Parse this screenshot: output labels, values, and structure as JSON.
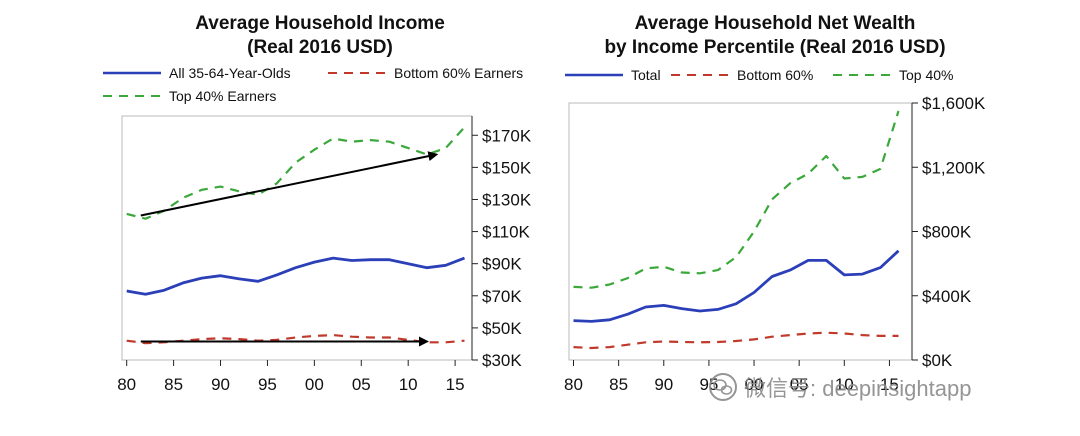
{
  "colors": {
    "all": "#2b3fb8",
    "bottom": "#c0392b",
    "top": "#3aa83a",
    "axis": "#222222",
    "frame": "#bbbbbb",
    "arrow": "#000000"
  },
  "watermark": {
    "text": "微信号: deepinsightapp"
  },
  "chart_data": [
    {
      "type": "line",
      "title": "Average Household Income",
      "subtitle": "(Real 2016 USD)",
      "xlabel": "",
      "ylabel": "",
      "x_ticks": [
        {
          "value": 1980,
          "label": "80"
        },
        {
          "value": 1985,
          "label": "85"
        },
        {
          "value": 1990,
          "label": "90"
        },
        {
          "value": 1995,
          "label": "95"
        },
        {
          "value": 2000,
          "label": "00"
        },
        {
          "value": 2005,
          "label": "05"
        },
        {
          "value": 2010,
          "label": "10"
        },
        {
          "value": 2015,
          "label": "15"
        }
      ],
      "y_ticks": [
        {
          "value": 30,
          "label": "$30K"
        },
        {
          "value": 50,
          "label": "$50K"
        },
        {
          "value": 70,
          "label": "$70K"
        },
        {
          "value": 90,
          "label": "$90K"
        },
        {
          "value": 110,
          "label": "$110K"
        },
        {
          "value": 130,
          "label": "$130K"
        },
        {
          "value": 150,
          "label": "$150K"
        },
        {
          "value": 170,
          "label": "$170K"
        }
      ],
      "xlim": [
        1979.5,
        2016.8
      ],
      "ylim": [
        30,
        182
      ],
      "legend": [
        {
          "name": "All 35-64-Year-Olds",
          "style": "solid",
          "color": "#2b3fb8"
        },
        {
          "name": "Bottom 60% Earners",
          "style": "dashed",
          "color": "#c0392b"
        },
        {
          "name": "Top 40% Earners",
          "style": "dashed",
          "color": "#3aa83a"
        }
      ],
      "series": [
        {
          "name": "All 35-64-Year-Olds",
          "style": "solid",
          "color": "#2b3fb8",
          "x": [
            1980,
            1982,
            1984,
            1986,
            1988,
            1990,
            1992,
            1994,
            1996,
            1998,
            2000,
            2002,
            2004,
            2006,
            2008,
            2010,
            2012,
            2014,
            2016
          ],
          "y": [
            73,
            71,
            73.5,
            78,
            81,
            82.5,
            80.5,
            79,
            83,
            87.5,
            91,
            93.5,
            92,
            92.5,
            92.5,
            90,
            87.5,
            89,
            93.5
          ]
        },
        {
          "name": "Bottom 60% Earners",
          "style": "dashed",
          "color": "#c0392b",
          "x": [
            1980,
            1982,
            1984,
            1986,
            1988,
            1990,
            1992,
            1994,
            1996,
            1998,
            2000,
            2002,
            2004,
            2006,
            2008,
            2010,
            2012,
            2014,
            2016
          ],
          "y": [
            42,
            40.5,
            41,
            42,
            43,
            43.5,
            43,
            42,
            42.5,
            44,
            45,
            45.5,
            44.5,
            44,
            44,
            42.5,
            41,
            41,
            42
          ]
        },
        {
          "name": "Top 40% Earners",
          "style": "dashed",
          "color": "#3aa83a",
          "x": [
            1980,
            1982,
            1984,
            1986,
            1988,
            1990,
            1992,
            1994,
            1996,
            1998,
            2000,
            2002,
            2004,
            2006,
            2008,
            2010,
            2012,
            2014,
            2016
          ],
          "y": [
            121,
            118,
            123,
            131,
            136,
            138,
            135,
            133,
            140,
            153,
            161,
            168,
            166,
            167,
            166,
            162,
            158,
            162,
            175
          ]
        }
      ],
      "annotations": [
        {
          "type": "arrow",
          "from": [
            1981.5,
            120
          ],
          "to": [
            2013,
            158
          ]
        },
        {
          "type": "arrow",
          "from": [
            1981.5,
            41.5
          ],
          "to": [
            2012,
            41.5
          ]
        }
      ]
    },
    {
      "type": "line",
      "title": "Average Household Net Wealth",
      "subtitle": "by Income Percentile (Real 2016 USD)",
      "xlabel": "",
      "ylabel": "",
      "x_ticks": [
        {
          "value": 1980,
          "label": "80"
        },
        {
          "value": 1985,
          "label": "85"
        },
        {
          "value": 1990,
          "label": "90"
        },
        {
          "value": 1995,
          "label": "95"
        },
        {
          "value": 2000,
          "label": "00"
        },
        {
          "value": 2005,
          "label": "05"
        },
        {
          "value": 2010,
          "label": "10"
        },
        {
          "value": 2015,
          "label": "15"
        }
      ],
      "y_ticks": [
        {
          "value": 0,
          "label": "$0K"
        },
        {
          "value": 400,
          "label": "$400K"
        },
        {
          "value": 800,
          "label": "$800K"
        },
        {
          "value": 1200,
          "label": "$1,200K"
        },
        {
          "value": 1600,
          "label": "$1,600K"
        }
      ],
      "xlim": [
        1979.5,
        2017.5
      ],
      "ylim": [
        0,
        1600
      ],
      "legend": [
        {
          "name": "Total",
          "style": "solid",
          "color": "#2b3fb8"
        },
        {
          "name": "Bottom 60%",
          "style": "dashed",
          "color": "#c0392b"
        },
        {
          "name": "Top 40%",
          "style": "dashed",
          "color": "#3aa83a"
        }
      ],
      "series": [
        {
          "name": "Total",
          "style": "solid",
          "color": "#2b3fb8",
          "x": [
            1980,
            1982,
            1984,
            1986,
            1988,
            1990,
            1992,
            1994,
            1996,
            1998,
            2000,
            2002,
            2004,
            2006,
            2008,
            2010,
            2012,
            2014,
            2016
          ],
          "y": [
            245,
            240,
            250,
            285,
            330,
            340,
            320,
            305,
            315,
            350,
            420,
            520,
            560,
            620,
            620,
            530,
            535,
            575,
            680
          ]
        },
        {
          "name": "Bottom 60%",
          "style": "dashed",
          "color": "#c0392b",
          "x": [
            1980,
            1982,
            1984,
            1986,
            1988,
            1990,
            1992,
            1994,
            1996,
            1998,
            2000,
            2002,
            2004,
            2006,
            2008,
            2010,
            2012,
            2014,
            2016
          ],
          "y": [
            80,
            75,
            80,
            95,
            110,
            115,
            112,
            110,
            112,
            118,
            128,
            145,
            155,
            165,
            170,
            165,
            155,
            150,
            150
          ]
        },
        {
          "name": "Top 40%",
          "style": "dashed",
          "color": "#3aa83a",
          "x": [
            1980,
            1982,
            1984,
            1986,
            1988,
            1990,
            1992,
            1994,
            1996,
            1998,
            2000,
            2002,
            2004,
            2006,
            2008,
            2010,
            2012,
            2014,
            2016
          ],
          "y": [
            455,
            450,
            470,
            510,
            570,
            580,
            545,
            540,
            560,
            640,
            800,
            1000,
            1100,
            1160,
            1270,
            1130,
            1140,
            1190,
            1550
          ]
        }
      ]
    }
  ]
}
